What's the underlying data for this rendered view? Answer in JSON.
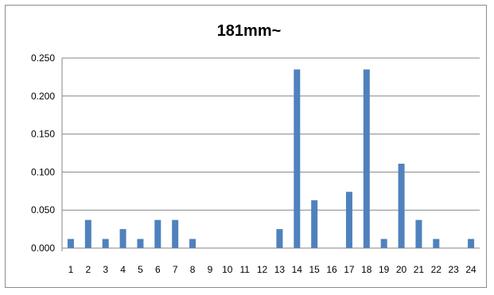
{
  "chart_data": {
    "type": "bar",
    "title": "181mm~",
    "xlabel": "",
    "ylabel": "",
    "categories": [
      "1",
      "2",
      "3",
      "4",
      "5",
      "6",
      "7",
      "8",
      "9",
      "10",
      "11",
      "12",
      "13",
      "14",
      "15",
      "16",
      "17",
      "18",
      "19",
      "20",
      "21",
      "22",
      "23",
      "24"
    ],
    "values": [
      0.012,
      0.037,
      0.012,
      0.025,
      0.012,
      0.037,
      0.037,
      0.012,
      0,
      0,
      0,
      0,
      0.025,
      0.235,
      0.063,
      0,
      0.074,
      0.235,
      0.012,
      0.111,
      0.037,
      0.012,
      0,
      0.012
    ],
    "ylim": [
      0,
      0.25
    ],
    "yticks": [
      "0.000",
      "0.050",
      "0.100",
      "0.150",
      "0.200",
      "0.250"
    ],
    "grid": true,
    "legend": "none",
    "colors": {
      "bar": "#4f81bd",
      "grid": "#868686",
      "axis": "#868686",
      "frame": "#8c8c8c"
    }
  }
}
